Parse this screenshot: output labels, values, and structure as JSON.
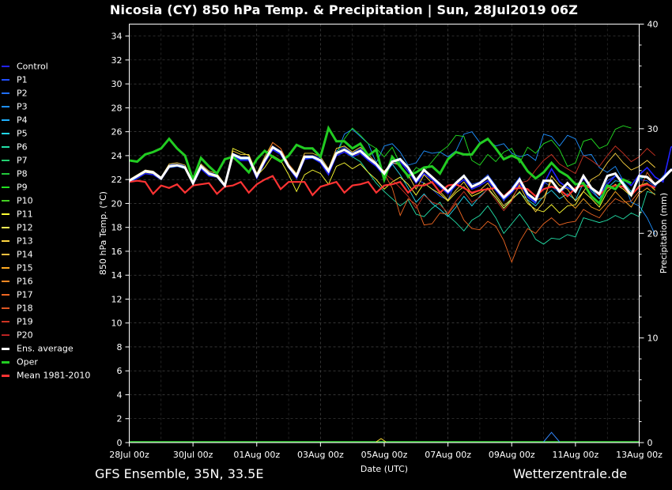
{
  "header": {
    "title": "Nicosia  (CY)  850 hPa Temp. & Precipitation | Sun, 28Jul2019 06Z"
  },
  "footer": {
    "left": "GFS Ensemble, 35N, 33.5E",
    "right": "Wetterzentrale.de"
  },
  "legend": [
    {
      "label": "Control",
      "color": "#2222ff",
      "thick": false
    },
    {
      "label": "P1",
      "color": "#1f4fff",
      "thick": false
    },
    {
      "label": "P2",
      "color": "#1f6fff",
      "thick": false
    },
    {
      "label": "P3",
      "color": "#1e90ff",
      "thick": false
    },
    {
      "label": "P4",
      "color": "#1eb0ff",
      "thick": false
    },
    {
      "label": "P5",
      "color": "#22d8f0",
      "thick": false
    },
    {
      "label": "P6",
      "color": "#22e0a8",
      "thick": false
    },
    {
      "label": "P7",
      "color": "#22d070",
      "thick": false
    },
    {
      "label": "P8",
      "color": "#22c83a",
      "thick": false
    },
    {
      "label": "P9",
      "color": "#22e022",
      "thick": false
    },
    {
      "label": "P10",
      "color": "#44d022",
      "thick": false
    },
    {
      "label": "P11",
      "color": "#ffff33",
      "thick": false
    },
    {
      "label": "P12",
      "color": "#ffee55",
      "thick": false
    },
    {
      "label": "P13",
      "color": "#ffd640",
      "thick": false
    },
    {
      "label": "P14",
      "color": "#ffc040",
      "thick": false
    },
    {
      "label": "P15",
      "color": "#ffaa22",
      "thick": false
    },
    {
      "label": "P16",
      "color": "#ff8822",
      "thick": false
    },
    {
      "label": "P17",
      "color": "#ee6622",
      "thick": false
    },
    {
      "label": "P18",
      "color": "#dd5522",
      "thick": false
    },
    {
      "label": "P19",
      "color": "#cc3322",
      "thick": false
    },
    {
      "label": "P20",
      "color": "#bb2222",
      "thick": false
    },
    {
      "label": "Ens. average",
      "color": "#ffffff",
      "thick": true
    },
    {
      "label": "Oper",
      "color": "#22cc22",
      "thick": true
    },
    {
      "label": "Mean 1981-2010",
      "color": "#ff3333",
      "thick": true
    }
  ],
  "chart_data": {
    "type": "line",
    "title": "Nicosia  (CY)  850 hPa Temp. & Precipitation | Sun, 28Jul2019 06Z",
    "xlabel": "Date (UTC)",
    "ylabel": "850 hPa Temp. (°C)",
    "y2label": "Precipitation (mm)",
    "xlim": [
      0,
      16
    ],
    "ylim": [
      0,
      35
    ],
    "y2lim": [
      0,
      40
    ],
    "x_ticks": [
      {
        "x": 0,
        "label": "28Jul 00z"
      },
      {
        "x": 2,
        "label": "30Jul 00z"
      },
      {
        "x": 4,
        "label": "01Aug 00z"
      },
      {
        "x": 6,
        "label": "03Aug 00z"
      },
      {
        "x": 8,
        "label": "05Aug 00z"
      },
      {
        "x": 10,
        "label": "07Aug 00z"
      },
      {
        "x": 12,
        "label": "09Aug 00z"
      },
      {
        "x": 14,
        "label": "11Aug 00z"
      },
      {
        "x": 16,
        "label": "13Aug 00z"
      }
    ],
    "y_ticks": [
      0,
      2,
      4,
      6,
      8,
      10,
      12,
      14,
      16,
      18,
      20,
      22,
      24,
      26,
      28,
      30,
      32,
      34
    ],
    "y2_ticks": [
      0,
      10,
      20,
      30,
      40
    ],
    "grid": true,
    "legend_position": "left",
    "time_step_days": 0.25,
    "start_x": 0,
    "ens_average": [
      21.9,
      22.3,
      22.7,
      22.6,
      22.1,
      23.1,
      23.2,
      23.0,
      21.7,
      23.1,
      22.5,
      22.3,
      21.5,
      24.1,
      23.8,
      23.8,
      22.3,
      23.6,
      24.7,
      24.3,
      23.1,
      22.3,
      23.9,
      23.9,
      23.6,
      22.7,
      24.2,
      24.5,
      24.1,
      24.4,
      23.8,
      23.3,
      22.5,
      23.5,
      23.7,
      23.0,
      21.9,
      22.8,
      22.2,
      21.6,
      21.0,
      21.7,
      22.3,
      21.4,
      21.7,
      22.2,
      21.3,
      20.5,
      21.1,
      22.0,
      20.8,
      20.3,
      21.9,
      21.9,
      21.0,
      21.7,
      21.0,
      22.3,
      21.3,
      20.8,
      22.3,
      22.5,
      21.6,
      20.7,
      22.3,
      22.2,
      21.6,
      22.1,
      22.8,
      22.7,
      22.1
    ],
    "oper": [
      23.6,
      23.5,
      24.1,
      24.3,
      24.6,
      25.4,
      24.6,
      24.0,
      22.0,
      23.8,
      23.1,
      22.5,
      23.7,
      23.9,
      23.3,
      22.6,
      23.7,
      24.4,
      23.9,
      23.5,
      24.0,
      24.9,
      24.6,
      24.6,
      23.9,
      26.3,
      25.2,
      25.2,
      24.6,
      25.0,
      24.0,
      24.5,
      22.0,
      23.9,
      23.1,
      22.3,
      22.6,
      23.0,
      23.1,
      22.5,
      23.7,
      24.3,
      24.1,
      24.1,
      25.0,
      25.4,
      24.6,
      23.7,
      24.0,
      23.7,
      22.7,
      22.1,
      22.6,
      23.4,
      22.7,
      22.3,
      21.6,
      21.7,
      20.6,
      20.0,
      21.5,
      21.2,
      22.0,
      21.7
    ],
    "mean_1981_2010": [
      21.8,
      21.9,
      21.8,
      20.8,
      21.5,
      21.3,
      21.6,
      20.9,
      21.5,
      21.6,
      21.7,
      20.8,
      21.4,
      21.5,
      21.8,
      20.9,
      21.6,
      22.0,
      22.3,
      21.2,
      21.8,
      21.8,
      21.8,
      20.7,
      21.4,
      21.6,
      21.8,
      20.9,
      21.5,
      21.6,
      21.8,
      20.9,
      21.5,
      21.6,
      21.8,
      20.9,
      21.5,
      21.5,
      21.8,
      20.9,
      21.5,
      21.6,
      21.3,
      20.9,
      21.1,
      21.2,
      21.3,
      20.6,
      21.2,
      21.3,
      21.2,
      20.6,
      21.2,
      21.4,
      21.2,
      20.6,
      21.3,
      21.5,
      21.3,
      20.7,
      21.3,
      21.5,
      21.4,
      20.7,
      21.4,
      21.6,
      21.3
    ],
    "members": [
      {
        "name": "Control",
        "values": [
          21.8,
          22.1,
          22.5,
          22.4,
          22.0,
          23.0,
          23.1,
          23.0,
          21.6,
          22.9,
          22.3,
          22.2,
          21.4,
          24.0,
          23.6,
          23.6,
          22.1,
          23.4,
          24.5,
          24.1,
          23.0,
          22.1,
          23.7,
          23.8,
          23.4,
          22.4,
          24.0,
          24.3,
          23.9,
          24.2,
          23.6,
          23.1,
          22.3,
          23.3,
          23.5,
          22.7,
          21.7,
          22.5,
          22.0,
          21.4,
          20.8,
          21.5,
          22.0,
          21.2,
          21.5,
          21.9,
          21.1,
          20.3,
          20.9,
          21.7,
          20.6,
          20.1,
          21.6,
          22.9,
          21.8,
          21.3,
          21.0,
          22.1,
          21.2,
          20.7,
          21.6,
          22.3,
          22.0,
          21.5,
          22.4,
          23.0,
          22.2,
          21.8,
          24.7,
          25.1,
          24.4
        ]
      },
      {
        "name": "P1",
        "values": [
          21.9,
          22.3,
          22.8,
          22.7,
          22.2,
          23.2,
          23.4,
          23.1,
          21.8,
          23.2,
          22.6,
          22.4,
          21.6,
          24.2,
          23.9,
          23.9,
          22.4,
          23.7,
          24.8,
          24.4,
          23.2,
          22.4,
          24.0,
          24.0,
          23.8,
          22.9,
          24.4,
          24.7,
          24.2,
          24.6,
          23.9,
          23.4,
          22.6,
          23.6,
          23.8,
          23.1,
          22.0,
          21.7,
          21.2,
          20.6,
          20.3,
          21.8,
          22.4,
          21.6,
          21.8,
          22.4,
          21.5,
          20.2,
          21.3,
          22.2,
          20.5,
          20.0,
          21.8,
          21.4,
          20.9,
          21.4,
          20.9,
          22.2,
          21.0,
          20.4,
          21.9,
          22.3,
          21.7,
          20.8,
          22.0,
          21.9,
          21.4,
          22.3,
          22.9,
          23.0,
          22.4
        ]
      },
      {
        "name": "P3",
        "values": [
          21.7,
          22.2,
          22.6,
          22.5,
          22.0,
          23.0,
          23.1,
          22.9,
          21.6,
          23.0,
          22.4,
          22.2,
          21.4,
          24.0,
          23.7,
          23.7,
          22.2,
          23.5,
          24.6,
          24.2,
          23.0,
          22.2,
          23.8,
          23.8,
          23.5,
          22.6,
          24.1,
          25.8,
          26.2,
          25.6,
          25.0,
          23.4,
          24.8,
          25.0,
          24.3,
          23.2,
          23.4,
          24.4,
          24.2,
          24.3,
          23.9,
          24.4,
          25.8,
          26.0,
          25.1,
          25.3,
          24.8,
          25.0,
          24.2,
          23.9,
          24.1,
          23.6,
          25.8,
          25.6,
          24.8,
          25.7,
          25.4,
          24.0,
          24.1,
          23.0,
          22.6,
          23.1,
          21.9,
          20.1,
          19.8,
          18.8,
          17.4
        ]
      },
      {
        "name": "P5",
        "values": [
          21.9,
          22.3,
          22.7,
          22.6,
          22.1,
          23.1,
          23.2,
          23.0,
          21.7,
          23.0,
          22.4,
          22.3,
          21.5,
          24.1,
          23.8,
          23.8,
          22.3,
          23.6,
          24.7,
          24.3,
          23.1,
          22.3,
          23.9,
          23.9,
          23.6,
          22.7,
          24.2,
          24.5,
          24.1,
          24.4,
          23.8,
          23.3,
          22.5,
          23.3,
          22.4,
          21.3,
          20.1,
          20.8,
          20.0,
          19.5,
          18.9,
          19.7,
          20.6,
          19.8,
          20.6,
          21.2,
          20.5,
          19.6,
          20.4,
          20.9,
          20.3,
          19.8,
          20.6,
          21.1,
          20.4,
          20.8,
          20.3,
          21.7,
          21.2,
          20.4,
          21.3,
          21.9,
          21.8,
          21.0,
          22.1,
          22.2,
          21.7
        ]
      },
      {
        "name": "P6",
        "values": [
          21.9,
          22.3,
          22.7,
          22.6,
          22.1,
          23.1,
          23.2,
          23.0,
          21.7,
          23.1,
          22.5,
          22.3,
          21.5,
          24.1,
          23.8,
          23.8,
          22.3,
          23.6,
          24.7,
          24.3,
          23.1,
          22.3,
          23.9,
          23.9,
          23.6,
          22.7,
          24.2,
          24.5,
          23.9,
          23.5,
          22.6,
          21.7,
          21.0,
          20.4,
          19.8,
          20.3,
          19.1,
          18.9,
          19.6,
          20.1,
          19.0,
          18.4,
          17.7,
          18.6,
          19.0,
          19.8,
          18.8,
          17.5,
          18.3,
          19.1,
          18.2,
          17.0,
          16.6,
          17.1,
          17.0,
          17.4,
          17.2,
          18.8,
          18.6,
          18.4,
          18.6,
          19.0,
          18.7,
          19.2,
          18.9,
          21.0,
          20.8
        ]
      },
      {
        "name": "P9",
        "values": [
          21.9,
          22.3,
          22.7,
          22.6,
          22.1,
          23.1,
          23.2,
          23.0,
          21.7,
          23.1,
          22.5,
          22.3,
          21.5,
          24.1,
          23.8,
          23.8,
          22.3,
          23.6,
          24.7,
          24.3,
          23.1,
          22.3,
          23.9,
          23.9,
          23.6,
          22.7,
          24.2,
          25.4,
          26.3,
          25.7,
          25.0,
          24.6,
          23.9,
          24.7,
          23.3,
          22.1,
          23.0,
          22.7,
          23.5,
          24.3,
          24.8,
          25.7,
          25.6,
          23.6,
          23.2,
          24.1,
          23.5,
          24.3,
          24.6,
          23.4,
          24.7,
          24.2,
          25.0,
          25.3,
          24.5,
          23.1,
          23.4,
          25.2,
          25.4,
          24.6,
          24.9,
          26.2,
          26.5,
          26.3
        ]
      },
      {
        "name": "P11",
        "values": [
          21.9,
          22.2,
          22.6,
          22.5,
          22.0,
          23.1,
          23.2,
          23.0,
          21.6,
          23.0,
          22.4,
          22.2,
          21.4,
          24.6,
          24.3,
          24.0,
          22.3,
          23.0,
          24.0,
          23.6,
          22.4,
          21.0,
          22.4,
          22.8,
          22.5,
          21.6,
          23.1,
          23.4,
          22.9,
          23.3,
          22.6,
          22.0,
          21.2,
          21.8,
          22.2,
          21.6,
          20.7,
          21.7,
          21.2,
          20.8,
          20.2,
          20.9,
          21.4,
          20.6,
          20.9,
          21.3,
          20.5,
          19.6,
          20.3,
          21.0,
          20.0,
          19.5,
          19.3,
          19.9,
          19.2,
          19.8,
          19.9,
          21.0,
          20.4,
          19.7,
          21.0,
          21.6,
          21.2,
          20.6,
          21.5,
          21.7,
          21.1
        ]
      },
      {
        "name": "P13",
        "values": [
          22.0,
          22.4,
          22.8,
          22.7,
          22.2,
          23.3,
          23.4,
          23.2,
          21.8,
          23.3,
          22.7,
          22.5,
          21.6,
          24.4,
          24.1,
          24.1,
          22.5,
          23.9,
          25.1,
          24.6,
          23.3,
          22.5,
          24.2,
          24.2,
          23.9,
          22.9,
          24.6,
          24.8,
          24.3,
          24.7,
          24.1,
          23.4,
          22.7,
          23.4,
          23.2,
          22.4,
          21.2,
          22.4,
          21.7,
          21.0,
          20.3,
          21.1,
          21.8,
          20.8,
          21.1,
          21.7,
          20.7,
          19.8,
          20.4,
          21.5,
          20.2,
          19.3,
          20.1,
          22.3,
          21.5,
          21.2,
          20.2,
          21.0,
          22.0,
          22.4,
          23.4,
          24.2,
          23.4,
          22.8,
          23.1,
          23.6,
          23.0
        ]
      },
      {
        "name": "P15",
        "values": [
          21.9,
          22.3,
          22.7,
          22.6,
          22.1,
          23.1,
          23.2,
          23.0,
          21.7,
          23.1,
          22.5,
          22.3,
          21.5,
          24.1,
          23.8,
          23.8,
          22.3,
          23.6,
          24.7,
          24.3,
          23.1,
          22.3,
          23.9,
          23.9,
          23.6,
          22.7,
          24.2,
          24.5,
          24.1,
          24.4,
          23.8,
          23.3,
          22.5,
          23.5,
          23.7,
          23.0,
          21.9,
          22.8,
          22.2,
          21.6,
          21.0,
          21.7,
          22.3,
          21.4,
          21.7,
          22.2,
          21.3,
          20.5,
          21.1,
          22.0,
          20.8,
          20.3,
          20.5,
          21.9,
          21.1,
          20.2,
          19.6,
          20.4,
          19.7,
          19.4,
          20.1,
          21.0,
          20.3,
          19.7,
          20.8,
          21.3,
          20.7
        ]
      },
      {
        "name": "P17",
        "values": [
          21.9,
          22.3,
          22.7,
          22.6,
          22.1,
          23.1,
          23.2,
          23.0,
          21.7,
          23.1,
          22.5,
          22.3,
          21.5,
          24.1,
          23.8,
          23.8,
          22.3,
          23.6,
          25.1,
          24.6,
          23.3,
          22.4,
          24.0,
          23.9,
          23.6,
          22.7,
          24.2,
          24.5,
          24.1,
          24.4,
          23.8,
          23.3,
          22.5,
          21.3,
          19.0,
          20.4,
          19.9,
          18.2,
          18.3,
          19.2,
          19.1,
          20.0,
          18.6,
          17.9,
          17.8,
          18.5,
          18.1,
          16.9,
          15.1,
          16.8,
          17.9,
          17.5,
          18.3,
          18.8,
          18.2,
          18.4,
          18.5,
          19.5,
          19.1,
          18.8,
          19.7,
          20.4,
          20.1,
          20.2,
          21.0,
          22.6,
          21.6
        ]
      },
      {
        "name": "P19",
        "values": [
          21.9,
          22.3,
          22.7,
          22.6,
          22.1,
          23.1,
          23.2,
          23.0,
          21.7,
          23.1,
          22.5,
          22.3,
          21.5,
          24.1,
          23.8,
          23.8,
          22.3,
          23.6,
          24.7,
          24.3,
          23.1,
          22.3,
          23.9,
          23.9,
          23.6,
          22.7,
          24.2,
          24.5,
          24.1,
          24.4,
          23.8,
          23.3,
          22.5,
          22.0,
          21.3,
          20.6,
          19.6,
          20.7,
          20.1,
          19.9,
          19.2,
          20.2,
          21.0,
          20.1,
          20.5,
          21.2,
          20.3,
          19.4,
          20.2,
          21.7,
          21.9,
          22.8,
          23.6,
          24.1,
          23.3,
          22.9,
          22.5,
          24.0,
          23.6,
          23.1,
          24.0,
          24.8,
          24.2,
          23.5,
          23.9,
          24.6,
          24.0
        ]
      }
    ],
    "precipitation": [
      {
        "x": 7.75,
        "value": 0.0
      },
      {
        "x": 7.9,
        "value": 0.3
      },
      {
        "x": 8.05,
        "value": 0.0
      },
      {
        "x": 13.0,
        "value": 0.0
      },
      {
        "x": 13.25,
        "value": 0.9
      },
      {
        "x": 13.5,
        "value": 0.0
      }
    ]
  }
}
